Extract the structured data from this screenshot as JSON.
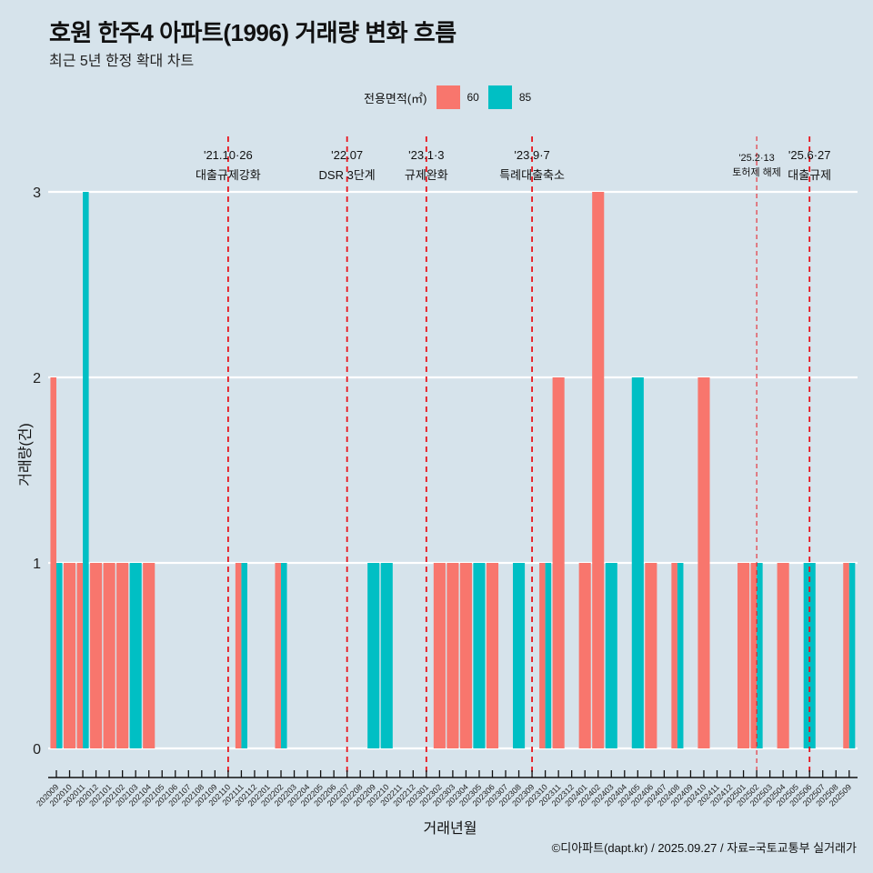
{
  "header": {
    "title": "호원 한주4 아파트(1996) 거래량 변화 흐름",
    "subtitle": "최근 5년 한정 확대 차트"
  },
  "legend": {
    "title": "전용면적(㎡)",
    "items": [
      {
        "label": "60",
        "color": "#f8766d"
      },
      {
        "label": "85",
        "color": "#00bfc4"
      }
    ]
  },
  "caption": "©디아파트(dapt.kr) / 2025.09.27 / 자료=국토교통부 실거래가",
  "chart_data": {
    "type": "bar",
    "title": "호원 한주4 아파트(1996) 거래량 변화 흐름",
    "subtitle": "최근 5년 한정 확대 차트",
    "xlabel": "거래년월",
    "ylabel": "거래량(건)",
    "ylim": [
      0,
      3
    ],
    "yticks": [
      0,
      1,
      2,
      3
    ],
    "grid": true,
    "legend_position": "top",
    "bar_mode": "dodge",
    "categories": [
      "202009",
      "202010",
      "202011",
      "202012",
      "202101",
      "202102",
      "202103",
      "202104",
      "202105",
      "202106",
      "202107",
      "202108",
      "202109",
      "202110",
      "202111",
      "202112",
      "202201",
      "202202",
      "202203",
      "202204",
      "202205",
      "202206",
      "202207",
      "202208",
      "202209",
      "202210",
      "202211",
      "202212",
      "202301",
      "202302",
      "202303",
      "202304",
      "202305",
      "202306",
      "202307",
      "202308",
      "202309",
      "202310",
      "202311",
      "202312",
      "202401",
      "202402",
      "202403",
      "202404",
      "202405",
      "202406",
      "202407",
      "202408",
      "202409",
      "202410",
      "202411",
      "202412",
      "202501",
      "202502",
      "202503",
      "202504",
      "202505",
      "202506",
      "202507",
      "202508",
      "202509"
    ],
    "series": [
      {
        "name": "60",
        "color": "#f8766d",
        "values": [
          2,
          1,
          1,
          1,
          1,
          1,
          0,
          1,
          0,
          0,
          0,
          0,
          0,
          0,
          1,
          0,
          0,
          1,
          0,
          0,
          0,
          0,
          0,
          0,
          0,
          0,
          0,
          0,
          0,
          1,
          1,
          1,
          0,
          1,
          0,
          0,
          0,
          1,
          2,
          0,
          1,
          3,
          0,
          0,
          0,
          1,
          0,
          1,
          0,
          2,
          0,
          0,
          1,
          1,
          0,
          1,
          0,
          0,
          0,
          0,
          1
        ]
      },
      {
        "name": "85",
        "color": "#00bfc4",
        "values": [
          1,
          0,
          3,
          0,
          0,
          0,
          1,
          0,
          0,
          0,
          0,
          0,
          0,
          0,
          1,
          0,
          0,
          1,
          0,
          0,
          0,
          0,
          0,
          0,
          1,
          1,
          0,
          0,
          0,
          0,
          0,
          0,
          1,
          0,
          0,
          1,
          0,
          1,
          0,
          0,
          0,
          0,
          1,
          0,
          2,
          0,
          0,
          1,
          0,
          0,
          0,
          0,
          0,
          1,
          0,
          0,
          0,
          1,
          0,
          0,
          1
        ]
      }
    ],
    "annotations": [
      {
        "category": "202110",
        "date": "'21.10·26",
        "label": "대출규제강화",
        "style": "major"
      },
      {
        "category": "202207",
        "date": "'22.07",
        "label": "DSR 3단계",
        "style": "major"
      },
      {
        "category": "202301",
        "date": "'23.1·3",
        "label": "규제완화",
        "style": "major"
      },
      {
        "category": "202309",
        "date": "'23.9·7",
        "label": "특례대출축소",
        "style": "major"
      },
      {
        "category": "202502",
        "date": "'25.2·13",
        "label": "토허제 해제",
        "style": "minor"
      },
      {
        "category": "202506",
        "date": "'25.6·27",
        "label": "대출규제",
        "style": "major"
      }
    ],
    "reference_line_color": "#e8141c"
  }
}
